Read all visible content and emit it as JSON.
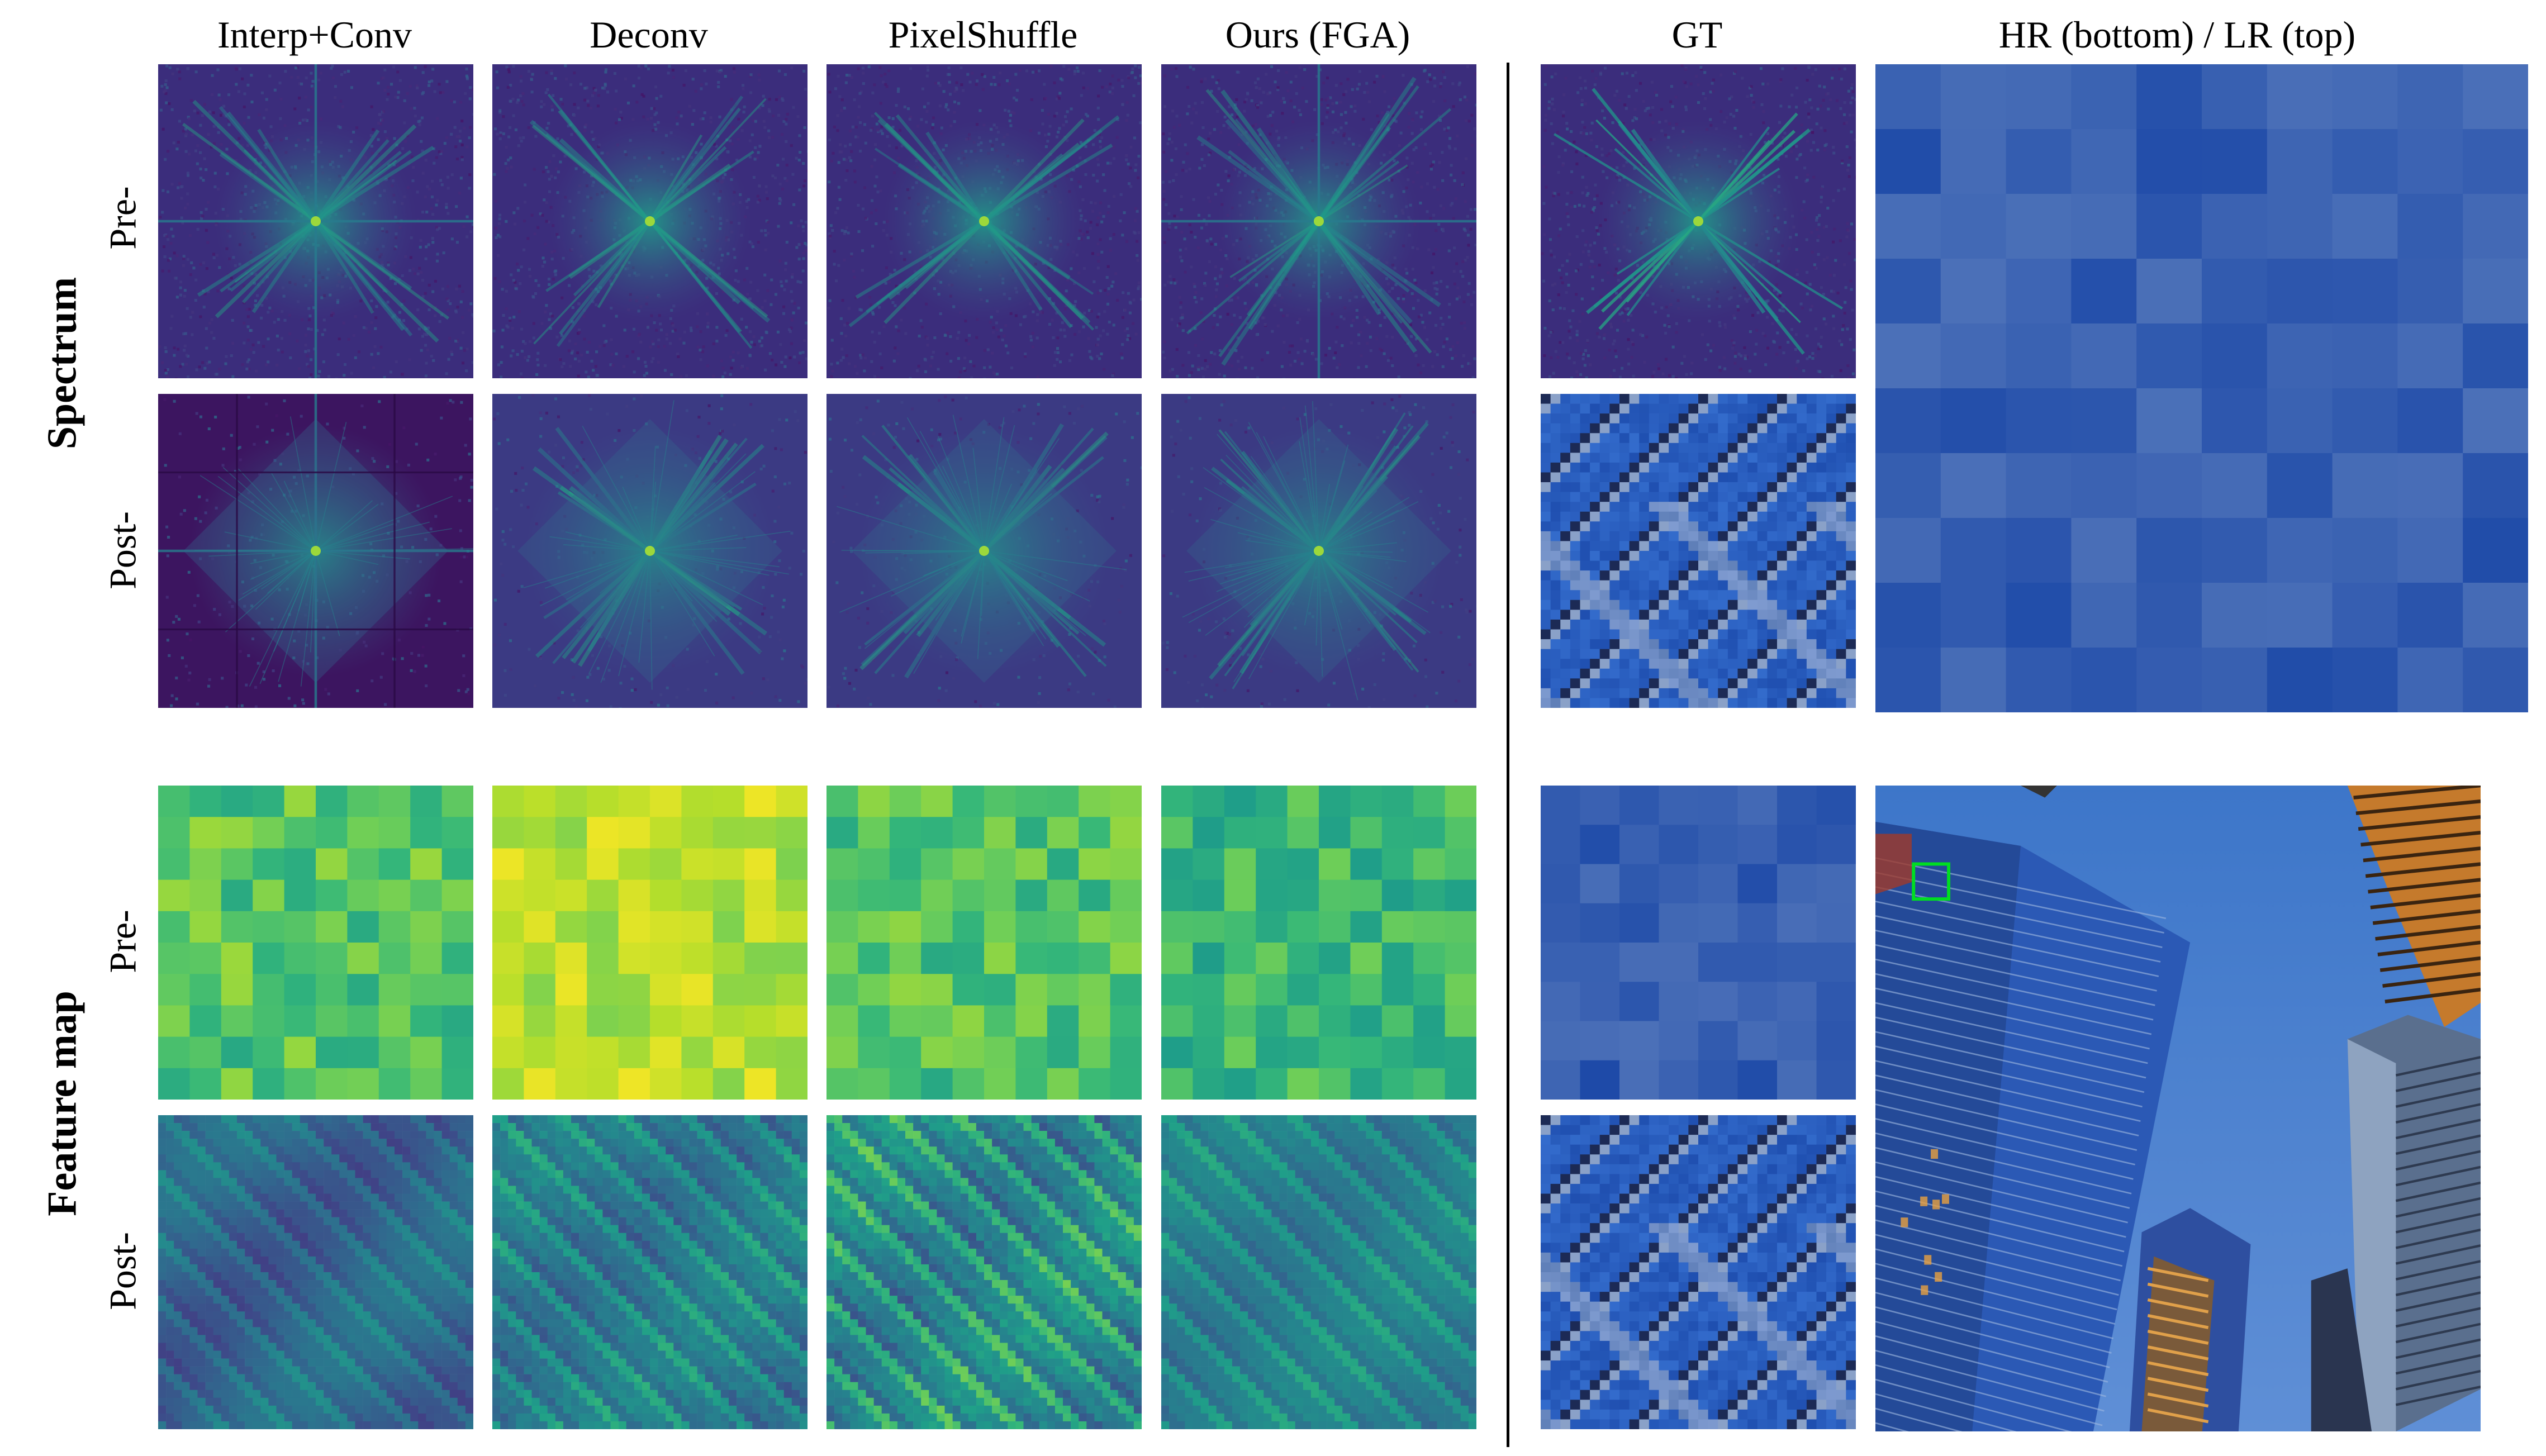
{
  "columns": [
    "Interp+Conv",
    "Deconv",
    "PixelShuffle",
    "Ours (FGA)",
    "GT",
    "HR (bottom) / LR (top)"
  ],
  "row_groups": {
    "spectrum": "Spectrum",
    "feature_map": "Feature map"
  },
  "row_labels": {
    "pre": "Pre-",
    "post": "Post-"
  },
  "panels": [
    {
      "id": "spectrum-pre-interp",
      "kind": "spectrum",
      "style": "cross"
    },
    {
      "id": "spectrum-pre-deconv",
      "kind": "spectrum",
      "style": "diagonal"
    },
    {
      "id": "spectrum-pre-pixelshuffle",
      "kind": "spectrum",
      "style": "diagonal"
    },
    {
      "id": "spectrum-pre-fga",
      "kind": "spectrum",
      "style": "cross"
    },
    {
      "id": "spectrum-pre-gt",
      "kind": "spectrum",
      "style": "diagonal-bright"
    },
    {
      "id": "spectrum-post-interp",
      "kind": "spectrum-post",
      "style": "dark-grid"
    },
    {
      "id": "spectrum-post-deconv",
      "kind": "spectrum-post",
      "style": "diamond"
    },
    {
      "id": "spectrum-post-pixelshuffle",
      "kind": "spectrum-post",
      "style": "diamond"
    },
    {
      "id": "spectrum-post-fga",
      "kind": "spectrum-post",
      "style": "diamond-fine"
    },
    {
      "id": "gt-hr-crop-top",
      "kind": "building-crop"
    },
    {
      "id": "feature-pre-interp",
      "kind": "feature-pre",
      "palette": "green-yellow"
    },
    {
      "id": "feature-pre-deconv",
      "kind": "feature-pre",
      "palette": "yellow"
    },
    {
      "id": "feature-pre-pixelshuffle",
      "kind": "feature-pre",
      "palette": "green-yellow"
    },
    {
      "id": "feature-pre-fga",
      "kind": "feature-pre",
      "palette": "green"
    },
    {
      "id": "gt-lr-crop",
      "kind": "blue-blocks"
    },
    {
      "id": "feature-post-interp",
      "kind": "feature-post",
      "palette": "blurry"
    },
    {
      "id": "feature-post-deconv",
      "kind": "feature-post",
      "palette": "teal"
    },
    {
      "id": "feature-post-pixelshuffle",
      "kind": "feature-post",
      "palette": "teal-bright"
    },
    {
      "id": "feature-post-fga",
      "kind": "feature-post",
      "palette": "teal-smooth"
    },
    {
      "id": "gt-hr-crop-bottom",
      "kind": "building-crop"
    }
  ],
  "colors": {
    "viridis_dark": "#440154",
    "viridis_purple": "#3b2f7f",
    "viridis_teal": "#21918c",
    "viridis_green": "#5ec962",
    "viridis_yellow": "#fde725",
    "building_blue": "#2a5bb8",
    "sky_blue": "#3f7fd0",
    "highlight_box": "#00dd22"
  }
}
